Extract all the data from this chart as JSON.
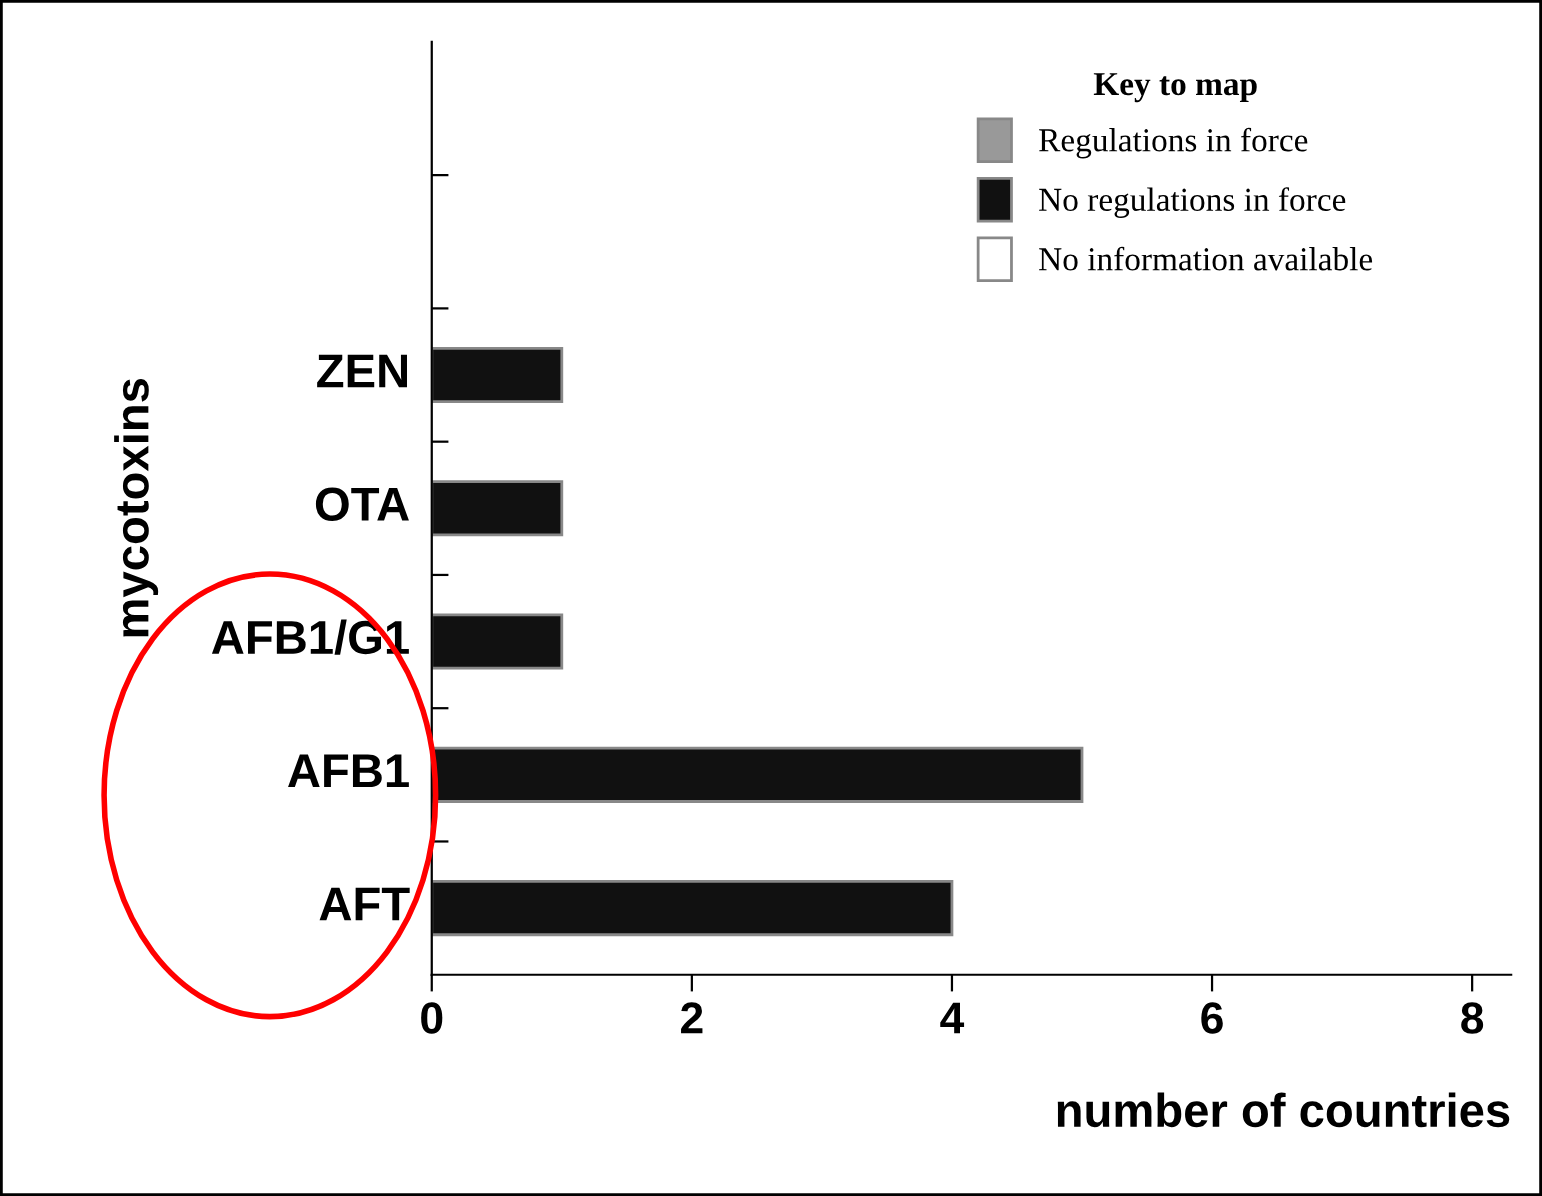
{
  "chart_data": {
    "type": "bar",
    "orientation": "horizontal",
    "xlabel": "number of countries",
    "ylabel": "mycotoxins",
    "legend_title": "Key to map",
    "categories": [
      null,
      null,
      "ZEN",
      "OTA",
      "AFB1/G1",
      "AFB1",
      "AFT"
    ],
    "series": [
      {
        "name": "Regulations in force",
        "color": "#999999",
        "values": [
          null,
          null,
          null,
          null,
          null,
          null,
          null
        ]
      },
      {
        "name": "No regulations in force",
        "color": "#111111",
        "values": [
          null,
          null,
          1,
          1,
          1,
          5,
          4
        ]
      },
      {
        "name": "No information available",
        "color": "#ffffff",
        "values": [
          null,
          null,
          null,
          null,
          null,
          null,
          null
        ]
      }
    ],
    "xlim": [
      0,
      8.3
    ],
    "xticks": [
      0,
      2,
      4,
      6,
      8
    ],
    "grid": false,
    "legend": "top right"
  }
}
